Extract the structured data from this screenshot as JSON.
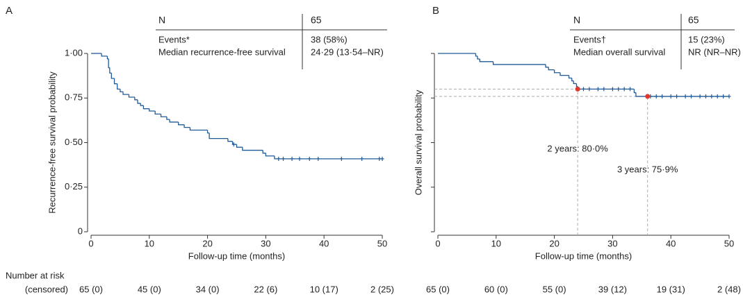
{
  "chart_data": [
    {
      "type": "step",
      "panel_label": "A",
      "table": {
        "rows": [
          [
            "N",
            "65"
          ],
          [
            "Events*",
            "38 (58%)"
          ],
          [
            "Median recurrence-free survival",
            "24·29 (13·54–NR)"
          ]
        ]
      },
      "y_label": "Recurrence-free survival probability",
      "x_label": "Follow-up time (months)",
      "xlim": [
        0,
        50
      ],
      "ylim": [
        0,
        1
      ],
      "xticks": [
        0,
        10,
        20,
        30,
        40,
        50
      ],
      "yticks": [
        {
          "value": 0,
          "label": "0"
        },
        {
          "value": 0.25,
          "label": "0·25"
        },
        {
          "value": 0.5,
          "label": "0·50"
        },
        {
          "value": 0.75,
          "label": "0·75"
        },
        {
          "value": 1,
          "label": "1·00"
        }
      ],
      "ytick_labels": true,
      "color": "#1f5a96",
      "series": [
        {
          "x": [
            0,
            1.8,
            2.8,
            3.0,
            3.2,
            3.5,
            4.0,
            4.5,
            5.0,
            5.5,
            6.5,
            7.5,
            8.0,
            8.5,
            9.0,
            10,
            11,
            12,
            13,
            13.5,
            15,
            16,
            17,
            20,
            20.3,
            23.5,
            24.3,
            25,
            26,
            29.5,
            30,
            31.5,
            50
          ],
          "values": [
            1,
            0.985,
            0.97,
            0.92,
            0.89,
            0.86,
            0.83,
            0.8,
            0.785,
            0.77,
            0.755,
            0.74,
            0.72,
            0.708,
            0.69,
            0.677,
            0.66,
            0.645,
            0.63,
            0.615,
            0.6,
            0.585,
            0.57,
            0.554,
            0.523,
            0.507,
            0.49,
            0.474,
            0.457,
            0.441,
            0.425,
            0.409,
            0.409
          ]
        }
      ],
      "censored": {
        "x": [
          24.5,
          32.2,
          33,
          34.5,
          35.8,
          37.5,
          39,
          43,
          46.5,
          49.5,
          50
        ],
        "values": [
          0.49,
          0.409,
          0.409,
          0.409,
          0.409,
          0.409,
          0.409,
          0.409,
          0.409,
          0.409,
          0.409
        ]
      },
      "annotations": [],
      "risk_table": {
        "title": [
          "Number at risk",
          "(censored)"
        ],
        "labels": [
          "65 (0)",
          "45 (0)",
          "34 (0)",
          "22 (6)",
          "10 (17)",
          "2 (25)"
        ]
      }
    },
    {
      "type": "step",
      "panel_label": "B",
      "table": {
        "rows": [
          [
            "N",
            "65"
          ],
          [
            "Events†",
            "15 (23%)"
          ],
          [
            "Median overall survival",
            "NR (NR–NR)"
          ]
        ]
      },
      "y_label": "Overall survival probability",
      "x_label": "Follow-up time (months)",
      "xlim": [
        0,
        50
      ],
      "ylim": [
        0,
        1
      ],
      "xticks": [
        0,
        10,
        20,
        30,
        40,
        50
      ],
      "yticks": [
        0,
        0.25,
        0.5,
        0.75,
        1
      ],
      "ytick_labels": false,
      "color": "#1f5a96",
      "annotation_color": "#e0362c",
      "series": [
        {
          "x": [
            0,
            6.5,
            6.8,
            7.2,
            9.5,
            18.5,
            19,
            20,
            21,
            22.5,
            23,
            23.3,
            23.8,
            24,
            33.7,
            34,
            50
          ],
          "values": [
            1,
            0.985,
            0.969,
            0.954,
            0.938,
            0.923,
            0.908,
            0.892,
            0.877,
            0.862,
            0.846,
            0.831,
            0.815,
            0.8,
            0.78,
            0.759,
            0.759
          ]
        }
      ],
      "censored": {
        "x": [
          25,
          26,
          27.5,
          28.5,
          30,
          31,
          32,
          33,
          36.5,
          37.5,
          38.5,
          40,
          41,
          42.5,
          43.5,
          45,
          46,
          47,
          48,
          49,
          50
        ],
        "values": [
          0.8,
          0.8,
          0.8,
          0.8,
          0.8,
          0.8,
          0.8,
          0.8,
          0.759,
          0.759,
          0.759,
          0.759,
          0.759,
          0.759,
          0.759,
          0.759,
          0.759,
          0.759,
          0.759,
          0.759,
          0.759
        ]
      },
      "annotations": [
        {
          "x": 24,
          "y": 0.8,
          "label": "2 years: 80·0%"
        },
        {
          "x": 36,
          "y": 0.759,
          "label": "3 years: 75·9%"
        }
      ],
      "risk_table": {
        "labels": [
          "65 (0)",
          "60 (0)",
          "55 (0)",
          "39 (12)",
          "19 (31)",
          "2 (48)"
        ]
      }
    }
  ]
}
